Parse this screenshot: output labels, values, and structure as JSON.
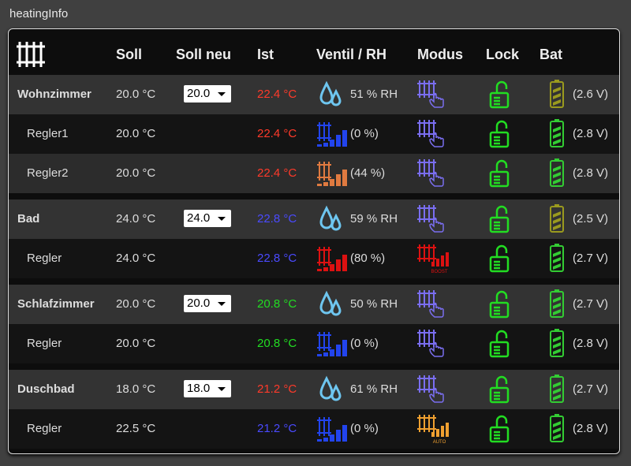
{
  "title": "heatingInfo",
  "table": {
    "headers": [
      "Soll",
      "Soll neu",
      "Ist",
      "Ventil / RH",
      "Modus",
      "Lock",
      "Bat"
    ],
    "groups": [
      {
        "rows": [
          {
            "name": "Wohnzimmer",
            "soll": "20.0 °C",
            "soll_neu": "20.0",
            "ist": "22.4 °C",
            "ist_color": "#ff3a2a",
            "rh": "51 % RH",
            "bat": "(2.6 V)",
            "bat_color": "#9a9a1e"
          },
          {
            "name": "Regler1",
            "soll": "20.0 °C",
            "ist": "22.4 °C",
            "ist_color": "#ff3a2a",
            "ventil": "(0 %)",
            "ventil_color": "#2244ee",
            "bat": "(2.8 V)",
            "bat_color": "#33cc33"
          },
          {
            "name": "Regler2",
            "soll": "20.0 °C",
            "ist": "22.4 °C",
            "ist_color": "#ff3a2a",
            "ventil": "(44 %)",
            "ventil_color": "#e07a40",
            "bat": "(2.8 V)",
            "bat_color": "#33cc33"
          }
        ]
      },
      {
        "rows": [
          {
            "name": "Bad",
            "soll": "24.0 °C",
            "soll_neu": "24.0",
            "ist": "22.8 °C",
            "ist_color": "#4a4aff",
            "rh": "59 % RH",
            "bat": "(2.5 V)",
            "bat_color": "#9a9a1e"
          },
          {
            "name": "Regler",
            "soll": "24.0 °C",
            "ist": "22.8 °C",
            "ist_color": "#4a4aff",
            "ventil": "(80 %)",
            "ventil_color": "#dd1111",
            "mode_label": "BOOST",
            "mode_color": "#dd1111",
            "bat": "(2.7 V)",
            "bat_color": "#33cc33"
          }
        ]
      },
      {
        "rows": [
          {
            "name": "Schlafzimmer",
            "soll": "20.0 °C",
            "soll_neu": "20.0",
            "ist": "20.8 °C",
            "ist_color": "#22dd22",
            "rh": "50 % RH",
            "bat": "(2.7 V)",
            "bat_color": "#33cc33"
          },
          {
            "name": "Regler",
            "soll": "20.0 °C",
            "ist": "20.8 °C",
            "ist_color": "#22dd22",
            "ventil": "(0 %)",
            "ventil_color": "#2244ee",
            "bat": "(2.8 V)",
            "bat_color": "#33cc33"
          }
        ]
      },
      {
        "rows": [
          {
            "name": "Duschbad",
            "soll": "18.0 °C",
            "soll_neu": "18.0",
            "ist": "21.2 °C",
            "ist_color": "#ff3a2a",
            "rh": "61 % RH",
            "bat": "(2.7 V)",
            "bat_color": "#33cc33"
          },
          {
            "name": "Regler",
            "soll": "22.5 °C",
            "ist": "21.2 °C",
            "ist_color": "#4a4aff",
            "ventil": "(0 %)",
            "ventil_color": "#2244ee",
            "mode_label": "AUTO",
            "mode_color": "#f0a030",
            "bat": "(2.8 V)",
            "bat_color": "#33cc33"
          }
        ]
      }
    ]
  }
}
